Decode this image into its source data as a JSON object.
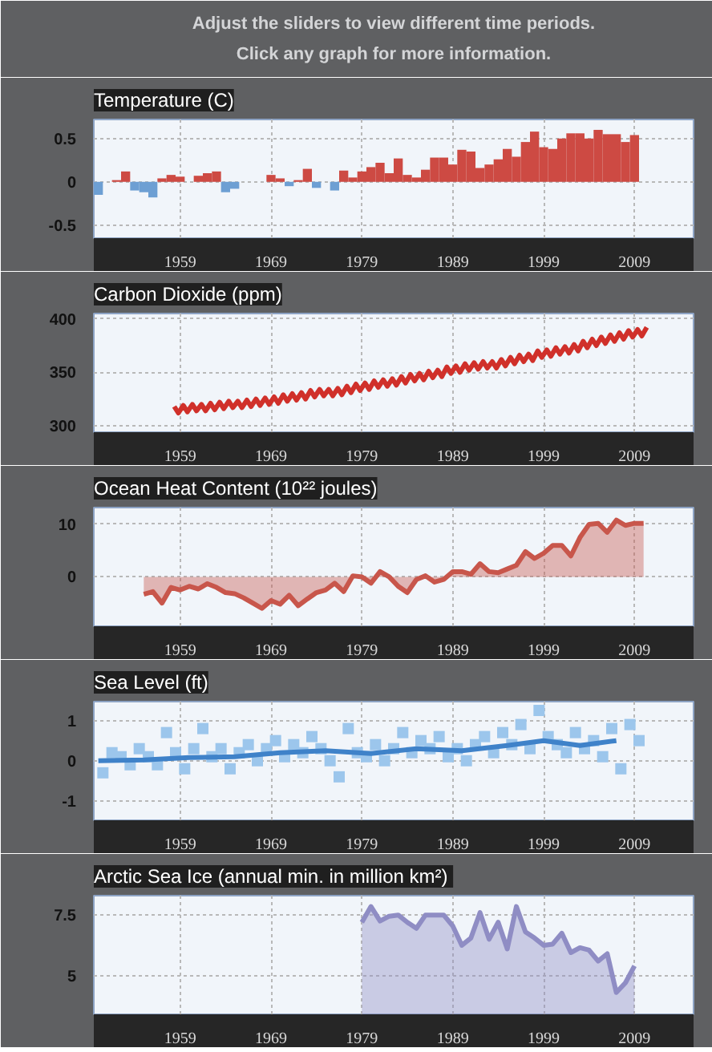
{
  "chart_data": [
    {
      "type": "bar",
      "title": "Temperature (C)",
      "annotations": [
        "Adjust the sliders to view different time periods.",
        "Click any graph for more information."
      ],
      "xlim": [
        1949.5,
        2015.5
      ],
      "xticks": [
        1959,
        1969,
        1979,
        1989,
        1999,
        2009
      ],
      "ylim": [
        -0.65,
        0.72
      ],
      "yticks": [
        -0.5,
        0,
        0.5
      ],
      "grid": true,
      "x": [
        1950,
        1951,
        1952,
        1953,
        1954,
        1955,
        1956,
        1957,
        1958,
        1959,
        1960,
        1961,
        1962,
        1963,
        1964,
        1965,
        1966,
        1967,
        1968,
        1969,
        1970,
        1971,
        1972,
        1973,
        1974,
        1975,
        1976,
        1977,
        1978,
        1979,
        1980,
        1981,
        1982,
        1983,
        1984,
        1985,
        1986,
        1987,
        1988,
        1989,
        1990,
        1991,
        1992,
        1993,
        1994,
        1995,
        1996,
        1997,
        1998,
        1999,
        2000,
        2001,
        2002,
        2003,
        2004,
        2005,
        2006,
        2007,
        2008,
        2009
      ],
      "values": [
        -0.15,
        0.0,
        0.02,
        0.12,
        -0.1,
        -0.12,
        -0.18,
        0.04,
        0.08,
        0.06,
        0.0,
        0.07,
        0.1,
        0.12,
        -0.12,
        -0.08,
        0.0,
        0.0,
        0.0,
        0.08,
        0.04,
        -0.05,
        0.02,
        0.15,
        -0.07,
        0.0,
        -0.1,
        0.13,
        0.05,
        0.12,
        0.17,
        0.22,
        0.1,
        0.27,
        0.08,
        0.05,
        0.14,
        0.28,
        0.28,
        0.2,
        0.37,
        0.35,
        0.16,
        0.2,
        0.26,
        0.38,
        0.29,
        0.46,
        0.58,
        0.4,
        0.38,
        0.5,
        0.56,
        0.56,
        0.5,
        0.6,
        0.55,
        0.55,
        0.46,
        0.54
      ],
      "colors": [
        "#6d9fd3",
        "#cd4a43",
        "#cd4a43",
        "#cd4a43",
        "#6d9fd3",
        "#6d9fd3",
        "#6d9fd3",
        "#cd4a43",
        "#cd4a43",
        "#cd4a43",
        "#cd4a43",
        "#cd4a43",
        "#cd4a43",
        "#cd4a43",
        "#6d9fd3",
        "#6d9fd3",
        "#cd4a43",
        "#cd4a43",
        "#cd4a43",
        "#cd4a43",
        "#cd4a43",
        "#6d9fd3",
        "#cd4a43",
        "#cd4a43",
        "#6d9fd3",
        "#cd4a43",
        "#6d9fd3",
        "#cd4a43",
        "#cd4a43",
        "#cd4a43",
        "#cd4a43",
        "#cd4a43",
        "#cd4a43",
        "#cd4a43",
        "#cd4a43",
        "#cd4a43",
        "#cd4a43",
        "#cd4a43",
        "#cd4a43",
        "#cd4a43",
        "#cd4a43",
        "#cd4a43",
        "#cd4a43",
        "#cd4a43",
        "#cd4a43",
        "#cd4a43",
        "#cd4a43",
        "#cd4a43",
        "#cd4a43",
        "#cd4a43",
        "#cd4a43",
        "#cd4a43",
        "#cd4a43",
        "#cd4a43",
        "#cd4a43",
        "#cd4a43",
        "#cd4a43",
        "#cd4a43",
        "#cd4a43",
        "#cd4a43"
      ]
    },
    {
      "type": "line",
      "title": "Carbon Dioxide (ppm)",
      "xlim": [
        1949.5,
        2015.5
      ],
      "xticks": [
        1959,
        1969,
        1979,
        1989,
        1999,
        2009
      ],
      "ylim": [
        294,
        405
      ],
      "yticks": [
        300,
        350,
        400
      ],
      "grid": true,
      "series": [
        {
          "color": "#d0302a",
          "x": [
            1958.35,
            1958.8,
            1959.35,
            1959.8,
            1960.35,
            1960.8,
            1961.35,
            1961.8,
            1962.35,
            1962.8,
            1963.35,
            1963.8,
            1964.35,
            1964.8,
            1965.35,
            1965.8,
            1966.35,
            1966.8,
            1967.35,
            1967.8,
            1968.35,
            1968.8,
            1969.35,
            1969.8,
            1970.35,
            1970.8,
            1971.35,
            1971.8,
            1972.35,
            1972.8,
            1973.35,
            1973.8,
            1974.35,
            1974.8,
            1975.35,
            1975.8,
            1976.35,
            1976.8,
            1977.35,
            1977.8,
            1978.35,
            1978.8,
            1979.35,
            1979.8,
            1980.35,
            1980.8,
            1981.35,
            1981.8,
            1982.35,
            1982.8,
            1983.35,
            1983.8,
            1984.35,
            1984.8,
            1985.35,
            1985.8,
            1986.35,
            1986.8,
            1987.35,
            1987.8,
            1988.35,
            1988.8,
            1989.35,
            1989.8,
            1990.35,
            1990.8,
            1991.35,
            1991.8,
            1992.35,
            1992.8,
            1993.35,
            1993.8,
            1994.35,
            1994.8,
            1995.35,
            1995.8,
            1996.35,
            1996.8,
            1997.35,
            1997.8,
            1998.35,
            1998.8,
            1999.35,
            1999.8,
            2000.35,
            2000.8,
            2001.35,
            2001.8,
            2002.35,
            2002.8,
            2003.35,
            2003.8,
            2004.35,
            2004.8,
            2005.35,
            2005.8,
            2006.35,
            2006.8,
            2007.35,
            2007.8,
            2008.35,
            2008.8,
            2009.35,
            2009.8,
            2010.35
          ],
          "values": [
            318,
            312,
            319,
            313,
            320,
            314,
            320,
            314,
            321,
            315,
            322,
            316,
            323,
            317,
            323,
            317,
            324,
            318,
            325,
            319,
            326,
            320,
            327,
            321,
            329,
            323,
            330,
            324,
            331,
            325,
            333,
            327,
            334,
            328,
            334,
            328,
            335,
            329,
            337,
            331,
            339,
            333,
            340,
            334,
            342,
            336,
            343,
            337,
            344,
            338,
            346,
            340,
            348,
            342,
            349,
            343,
            351,
            345,
            352,
            346,
            355,
            349,
            356,
            350,
            358,
            352,
            359,
            353,
            360,
            354,
            360,
            354,
            362,
            356,
            364,
            358,
            366,
            360,
            367,
            361,
            370,
            364,
            371,
            365,
            373,
            367,
            374,
            368,
            376,
            370,
            379,
            373,
            381,
            375,
            383,
            377,
            385,
            379,
            387,
            381,
            389,
            383,
            390,
            384,
            392
          ]
        }
      ]
    },
    {
      "type": "area",
      "title": "Ocean Heat Content (10²² joules)",
      "xlim": [
        1949.5,
        2015.5
      ],
      "xticks": [
        1959,
        1969,
        1979,
        1989,
        1999,
        2009
      ],
      "ylim": [
        -9.4,
        13.2
      ],
      "yticks": [
        0,
        10
      ],
      "grid": true,
      "series": [
        {
          "type": "area",
          "color": "#c8564b",
          "x": [
            1955,
            1956,
            1957,
            1958,
            1959,
            1960,
            1961,
            1962,
            1963,
            1964,
            1965,
            1966,
            1967,
            1968,
            1969,
            1970,
            1971,
            1972,
            1973,
            1974,
            1975,
            1976,
            1977,
            1978,
            1979,
            1980,
            1981,
            1982,
            1983,
            1984,
            1985,
            1986,
            1987,
            1988,
            1989,
            1990,
            1991,
            1992,
            1993,
            1994,
            1995,
            1996,
            1997,
            1998,
            1999,
            2000,
            2001,
            2002,
            2003,
            2004,
            2005,
            2006,
            2007,
            2008,
            2009,
            2010
          ],
          "values": [
            -3.3,
            -2.8,
            -5,
            -2,
            -2.5,
            -1.8,
            -2.3,
            -1.3,
            -2,
            -3,
            -3.2,
            -4,
            -5,
            -6,
            -4.5,
            -5.2,
            -3.5,
            -5.5,
            -4.2,
            -3,
            -2.5,
            -1.2,
            -2.8,
            0.2,
            0,
            -1.2,
            1,
            0,
            -1.8,
            -3,
            -0.5,
            0.2,
            -1,
            -0.5,
            1,
            1,
            0.5,
            2.5,
            1,
            0.8,
            1.5,
            2.2,
            4.8,
            3.5,
            4.5,
            6,
            6,
            4,
            7.5,
            10,
            10.2,
            8.5,
            10.8,
            9.8,
            10.2,
            10.2
          ]
        }
      ]
    },
    {
      "type": "scatter",
      "title": "Sea Level (ft)",
      "xlim": [
        1949.5,
        2015.5
      ],
      "xticks": [
        1959,
        1969,
        1979,
        1989,
        1999,
        2009
      ],
      "ylim": [
        -1.48,
        1.47
      ],
      "yticks": [
        -1,
        0,
        1
      ],
      "grid": true,
      "series": [
        {
          "type": "scatter",
          "marker": "square",
          "color": "#9cc6ec",
          "x": [
            1950.5,
            1951.5,
            1952.5,
            1953.5,
            1954.5,
            1955.5,
            1956.5,
            1957.5,
            1958.5,
            1959.5,
            1960.5,
            1961.5,
            1962.5,
            1963.5,
            1964.5,
            1965.5,
            1966.5,
            1967.5,
            1968.5,
            1969.5,
            1970.5,
            1971.5,
            1972.5,
            1973.5,
            1974.5,
            1975.5,
            1976.5,
            1977.5,
            1978.5,
            1979.5,
            1980.5,
            1981.5,
            1982.5,
            1983.5,
            1984.5,
            1985.5,
            1986.5,
            1987.5,
            1988.5,
            1989.5,
            1990.5,
            1991.5,
            1992.5,
            1993.5,
            1994.5,
            1995.5,
            1996.5,
            1997.5,
            1998.5,
            1999.5,
            2000.5,
            2001.5,
            2002.5,
            2003.5,
            2004.5,
            2005.5,
            2006.5,
            2007.5,
            2008.5,
            2009.5
          ],
          "values": [
            -0.3,
            0.2,
            0.1,
            -0.1,
            0.3,
            0.1,
            -0.1,
            0.7,
            0.2,
            -0.2,
            0.3,
            0.8,
            0.1,
            0.3,
            -0.2,
            0.2,
            0.4,
            0.0,
            0.3,
            0.5,
            0.1,
            0.4,
            0.2,
            0.6,
            0.3,
            0.0,
            -0.4,
            0.8,
            0.2,
            0.1,
            0.4,
            0.0,
            0.3,
            0.7,
            0.2,
            0.5,
            0.3,
            0.6,
            0.1,
            0.3,
            0.0,
            0.4,
            0.6,
            0.2,
            0.7,
            0.4,
            0.9,
            0.3,
            1.25,
            0.6,
            0.4,
            0.2,
            0.7,
            0.3,
            0.5,
            0.1,
            0.8,
            -0.2,
            0.9,
            0.5
          ]
        },
        {
          "type": "line",
          "color": "#3f82c9",
          "x": [
            1950,
            1955,
            1960,
            1965,
            1970,
            1975,
            1980,
            1985,
            1990,
            1995,
            1999,
            2003,
            2007
          ],
          "values": [
            0.0,
            0.02,
            0.08,
            0.1,
            0.2,
            0.25,
            0.18,
            0.3,
            0.25,
            0.38,
            0.5,
            0.38,
            0.5
          ]
        }
      ]
    },
    {
      "type": "area",
      "title": "Arctic Sea Ice",
      "subtitle": "(annual min. in million km²)",
      "xlim": [
        1949.5,
        2015.5
      ],
      "xticks": [
        1959,
        1969,
        1979,
        1989,
        1999,
        2009
      ],
      "ylim": [
        3.4,
        8.3
      ],
      "yticks": [
        5,
        7.5
      ],
      "grid": true,
      "series": [
        {
          "type": "area",
          "color": "#8f8dc4",
          "x": [
            1979,
            1980,
            1981,
            1982,
            1983,
            1984,
            1985,
            1986,
            1987,
            1988,
            1989,
            1990,
            1991,
            1992,
            1993,
            1994,
            1995,
            1996,
            1997,
            1998,
            1999,
            2000,
            2001,
            2002,
            2003,
            2004,
            2005,
            2006,
            2007,
            2008,
            2009
          ],
          "values": [
            7.2,
            7.85,
            7.25,
            7.45,
            7.5,
            7.2,
            6.95,
            7.5,
            7.5,
            7.5,
            7.05,
            6.25,
            6.55,
            7.6,
            6.5,
            7.2,
            6.1,
            7.85,
            6.8,
            6.55,
            6.25,
            6.3,
            6.75,
            5.95,
            6.15,
            6.05,
            5.6,
            5.9,
            4.3,
            4.7,
            5.4
          ]
        }
      ]
    }
  ]
}
